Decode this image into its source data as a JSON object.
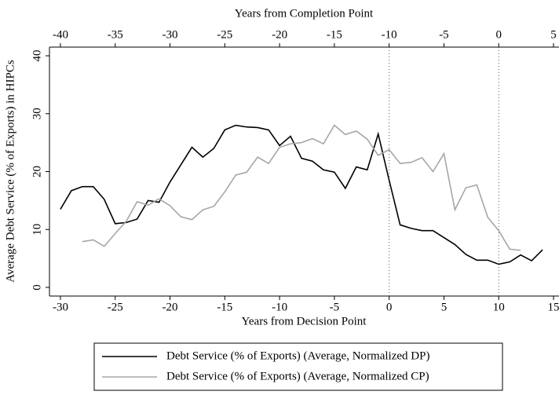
{
  "chart_data": {
    "type": "line",
    "xlabel": "Years from Decision Point",
    "x2label": "Years from Completion Point",
    "ylabel": "Average Debt Service (% of Exports) in HIPCs",
    "xlim": [
      -31,
      15.5
    ],
    "xticks": [
      -30,
      -25,
      -20,
      -15,
      -10,
      -5,
      0,
      5,
      10,
      15
    ],
    "x2lim": [
      -41,
      5.5
    ],
    "x2ticks": [
      -40,
      -35,
      -30,
      -25,
      -20,
      -15,
      -10,
      -5,
      0,
      5
    ],
    "ylim": [
      -1.5,
      41.5
    ],
    "yticks": [
      0,
      10,
      20,
      30,
      40
    ],
    "vlines": [
      0,
      10
    ],
    "series": [
      {
        "name": "Debt Service (% of Exports) (Average, Normalized DP)",
        "color": "#000000",
        "xaxis": "x",
        "x": [
          -30,
          -29,
          -28,
          -27,
          -26,
          -25,
          -24,
          -23,
          -22,
          -21,
          -20,
          -19,
          -18,
          -17,
          -16,
          -15,
          -14,
          -13,
          -12,
          -11,
          -10,
          -9,
          -8,
          -7,
          -6,
          -5,
          -4,
          -3,
          -2,
          -1,
          0,
          1,
          2,
          3,
          4,
          5,
          6,
          7,
          8,
          9,
          10,
          11,
          12,
          13,
          14
        ],
        "values": [
          13.5,
          16.7,
          17.4,
          17.4,
          15.2,
          11.0,
          11.2,
          11.8,
          15.0,
          14.7,
          18.2,
          21.2,
          24.2,
          22.5,
          24.0,
          27.2,
          28.0,
          27.7,
          27.6,
          27.2,
          24.5,
          26.1,
          22.3,
          21.8,
          20.3,
          19.9,
          17.1,
          20.8,
          20.3,
          26.5,
          18.5,
          10.8,
          10.2,
          9.8,
          9.8,
          8.6,
          7.4,
          5.7,
          4.7,
          4.7,
          4.0,
          4.4,
          5.6,
          4.6,
          6.5
        ]
      },
      {
        "name": "Debt Service (% of Exports) (Average, Normalized CP)",
        "color": "#a6a6a6",
        "xaxis": "x2",
        "x": [
          -38,
          -37,
          -36,
          -35,
          -34,
          -33,
          -32,
          -31,
          -30,
          -29,
          -28,
          -27,
          -26,
          -25,
          -24,
          -23,
          -22,
          -21,
          -20,
          -19,
          -18,
          -17,
          -16,
          -15,
          -14,
          -13,
          -12,
          -11,
          -10,
          -9,
          -8,
          -7,
          -6,
          -5,
          -4,
          -3,
          -2,
          -1,
          0,
          1,
          2
        ],
        "values": [
          7.9,
          8.2,
          7.1,
          9.3,
          11.4,
          14.8,
          14.2,
          15.3,
          14.1,
          12.2,
          11.7,
          13.4,
          14.0,
          16.5,
          19.4,
          19.9,
          22.5,
          21.4,
          24.2,
          24.8,
          25.0,
          25.7,
          24.8,
          28.0,
          26.4,
          27.0,
          25.6,
          22.8,
          23.8,
          21.4,
          21.6,
          22.4,
          20.0,
          23.1,
          13.4,
          17.2,
          17.7,
          12.1,
          9.8,
          6.6,
          6.4
        ]
      }
    ]
  }
}
